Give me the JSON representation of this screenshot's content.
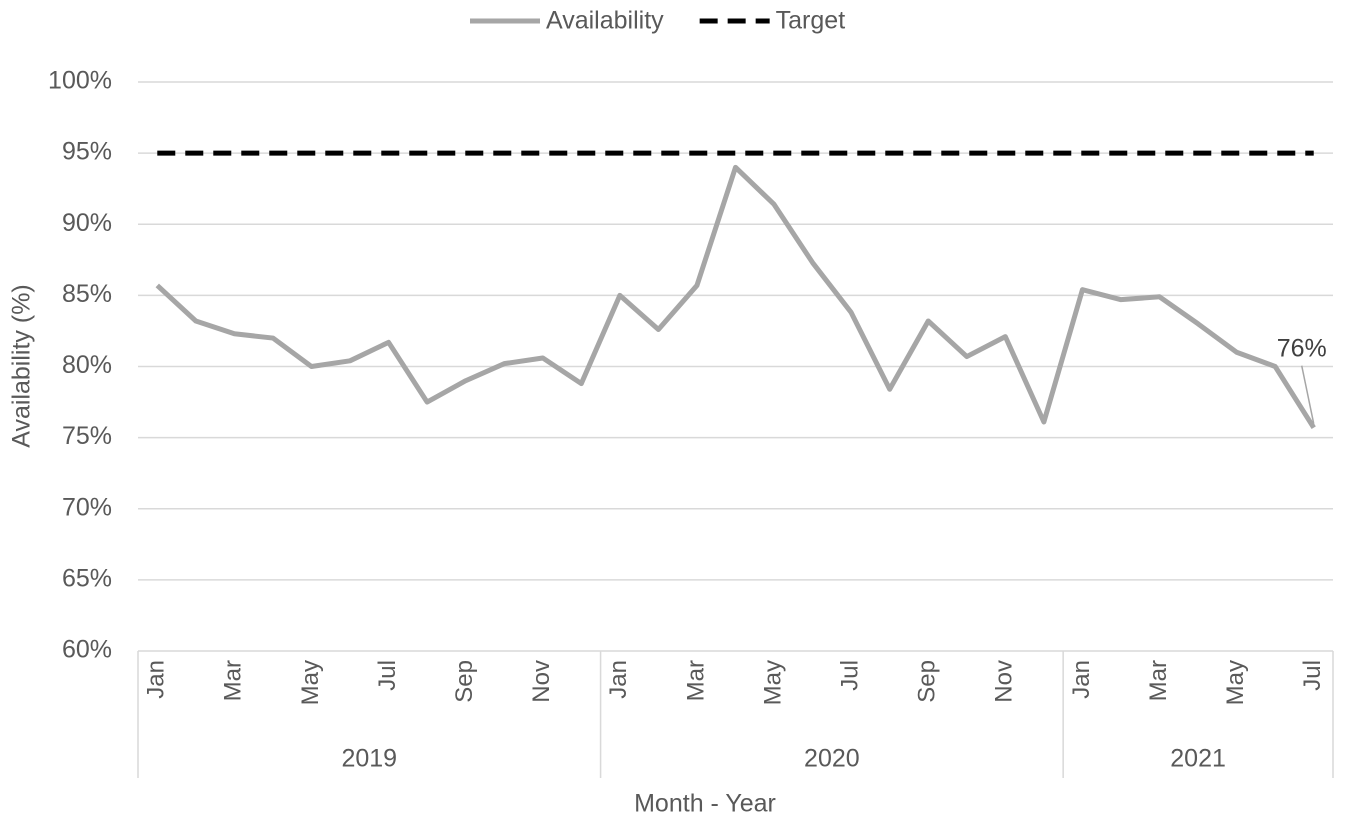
{
  "chart_data": {
    "type": "line",
    "categories": [
      "Jan",
      null,
      "Mar",
      null,
      "May",
      null,
      "Jul",
      null,
      "Sep",
      null,
      "Nov",
      null,
      "Jan",
      null,
      "Mar",
      null,
      "May",
      null,
      "Jul",
      null,
      "Sep",
      null,
      "Nov",
      null,
      "Jan",
      null,
      "Mar",
      null,
      "May",
      null,
      "Jul"
    ],
    "groups": [
      "2019",
      "2020",
      "2021"
    ],
    "series": [
      {
        "name": "Availability",
        "color": "#a6a6a6",
        "dash": false,
        "values": [
          85.7,
          83.2,
          82.3,
          82.0,
          80.0,
          80.4,
          81.7,
          77.5,
          79.0,
          80.2,
          80.6,
          78.8,
          85.0,
          82.6,
          85.7,
          94.0,
          91.4,
          87.3,
          83.8,
          78.4,
          83.2,
          80.7,
          82.1,
          76.1,
          85.4,
          84.7,
          84.9,
          83.0,
          81.0,
          80.0,
          75.7
        ],
        "value_labels": [
          null,
          null,
          null,
          null,
          null,
          null,
          null,
          null,
          null,
          null,
          null,
          null,
          null,
          null,
          null,
          null,
          null,
          null,
          null,
          null,
          null,
          null,
          null,
          null,
          null,
          null,
          null,
          null,
          null,
          null,
          "76%"
        ]
      },
      {
        "name": "Target",
        "color": "#000000",
        "dash": true,
        "values": [
          95,
          95,
          95,
          95,
          95,
          95,
          95,
          95,
          95,
          95,
          95,
          95,
          95,
          95,
          95,
          95,
          95,
          95,
          95,
          95,
          95,
          95,
          95,
          95,
          95,
          95,
          95,
          95,
          95,
          95,
          95
        ]
      }
    ],
    "xlabel": "Month - Year",
    "ylabel": "Availability (%)",
    "ylim": [
      60,
      100
    ],
    "yticks": [
      {
        "value": 60,
        "label": "60%"
      },
      {
        "value": 65,
        "label": "65%"
      },
      {
        "value": 70,
        "label": "70%"
      },
      {
        "value": 75,
        "label": "75%"
      },
      {
        "value": 80,
        "label": "80%"
      },
      {
        "value": 85,
        "label": "85%"
      },
      {
        "value": 90,
        "label": "90%"
      },
      {
        "value": 95,
        "label": "95%"
      },
      {
        "value": 100,
        "label": "100%"
      }
    ],
    "grid": true,
    "legend": "top"
  }
}
